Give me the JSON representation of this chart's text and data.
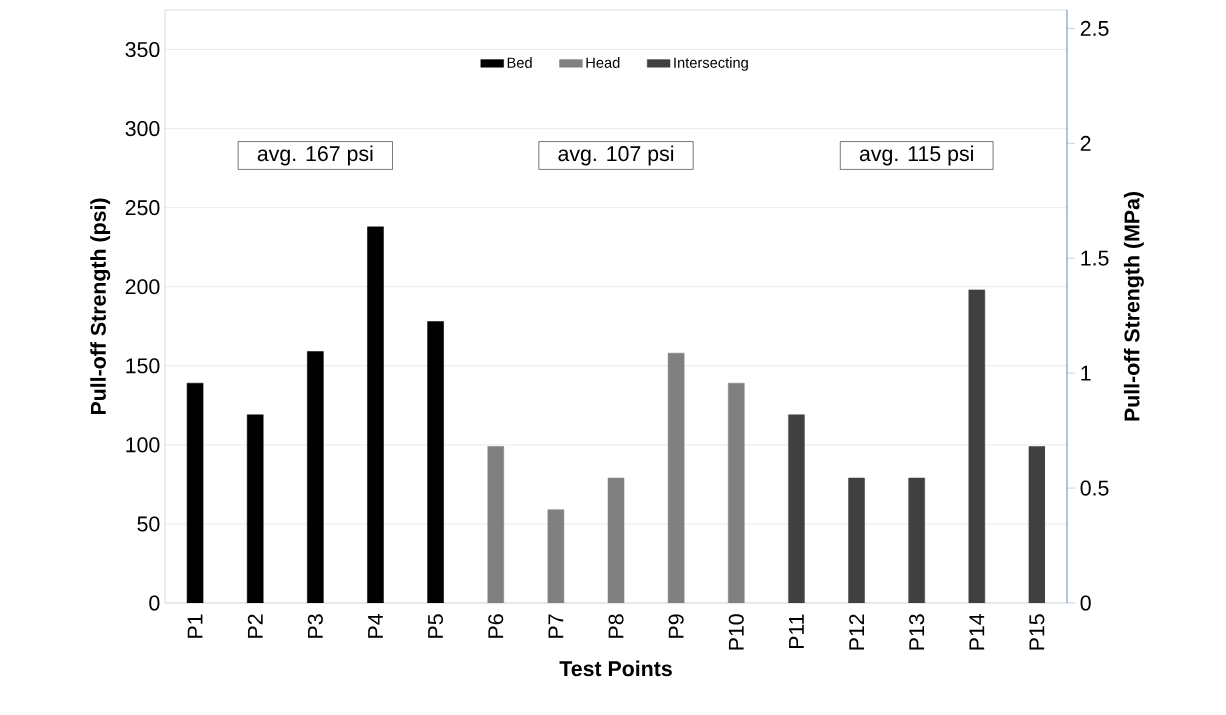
{
  "chart_data": {
    "type": "bar",
    "xlabel": "Test Points",
    "ylabel": "Pull-off Strength (psi)",
    "y2label": "Pull-off Strength (MPa)",
    "categories": [
      "P1",
      "P2",
      "P3",
      "P4",
      "P5",
      "P6",
      "P7",
      "P8",
      "P9",
      "P10",
      "P11",
      "P12",
      "P13",
      "P14",
      "P15"
    ],
    "series": [
      {
        "name": "Bed",
        "color": "#000000",
        "values": [
          139,
          119,
          159,
          238,
          178,
          null,
          null,
          null,
          null,
          null,
          null,
          null,
          null,
          null,
          null
        ]
      },
      {
        "name": "Head",
        "color": "#808080",
        "values": [
          null,
          null,
          null,
          null,
          null,
          99,
          59,
          79,
          158,
          139,
          null,
          null,
          null,
          null,
          null
        ]
      },
      {
        "name": "Intersecting",
        "color": "#404040",
        "values": [
          null,
          null,
          null,
          null,
          null,
          null,
          null,
          null,
          null,
          null,
          119,
          79,
          79,
          198,
          99
        ]
      }
    ],
    "ylim": [
      0,
      375
    ],
    "yticks": [
      0,
      50,
      100,
      150,
      200,
      250,
      300,
      350
    ],
    "y2lim": [
      0,
      2.58
    ],
    "y2ticks": [
      0,
      0.5,
      1,
      1.5,
      2,
      2.5
    ],
    "annotations": [
      "avg. 167 psi",
      "avg. 107 psi",
      "avg. 115 psi"
    ],
    "grid": "y",
    "legend": "top"
  }
}
